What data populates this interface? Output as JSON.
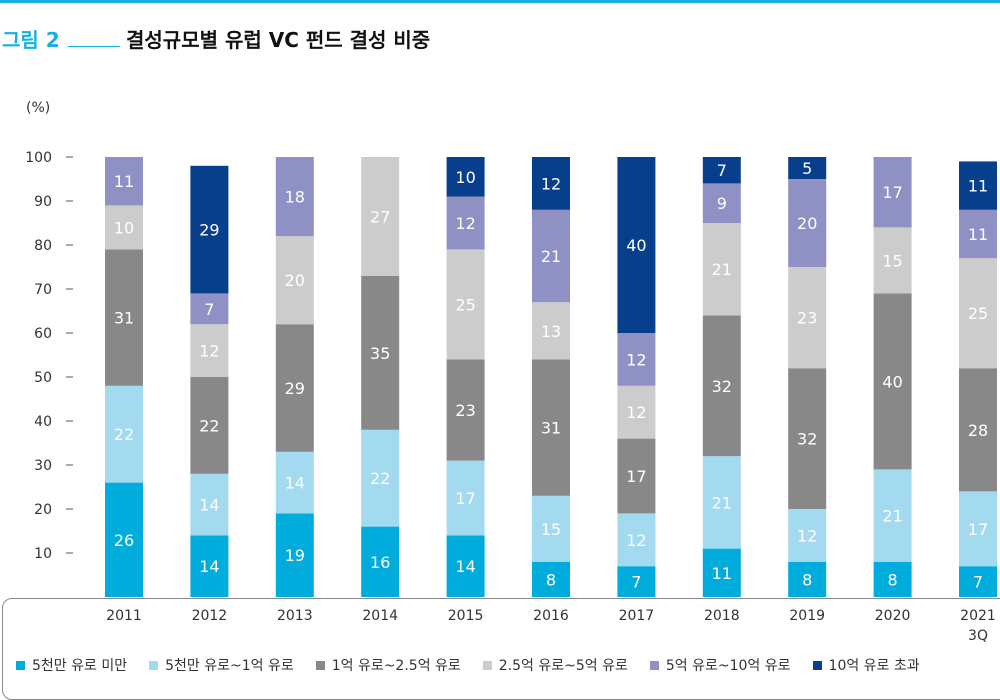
{
  "header": {
    "figure_label": "그림 2",
    "title": "결성규모별 유럽 VC 펀드 결성 비중"
  },
  "chart_data": {
    "type": "bar",
    "stacked": true,
    "unit_label": "(%)",
    "ylim": [
      0,
      100
    ],
    "yticks": [
      10,
      20,
      30,
      40,
      50,
      60,
      70,
      80,
      90,
      100
    ],
    "grid": false,
    "legend_position": "bottom",
    "categories": [
      "2011",
      "2012",
      "2013",
      "2014",
      "2015",
      "2016",
      "2017",
      "2018",
      "2019",
      "2020",
      "2021\n3Q"
    ],
    "series": [
      {
        "name": "5천만 유로 미만",
        "color": "#00acdc",
        "values": [
          26,
          14,
          19,
          16,
          14,
          8,
          7,
          11,
          8,
          8,
          7
        ]
      },
      {
        "name": "5천만 유로~1억 유로",
        "color": "#a3daf0",
        "values": [
          22,
          14,
          14,
          22,
          17,
          15,
          12,
          21,
          12,
          21,
          17
        ]
      },
      {
        "name": "1억 유로~2.5억 유로",
        "color": "#888888",
        "values": [
          31,
          22,
          29,
          35,
          23,
          31,
          17,
          32,
          32,
          40,
          28
        ]
      },
      {
        "name": "2.5억 유로~5억 유로",
        "color": "#cccccc",
        "values": [
          10,
          12,
          20,
          27,
          25,
          13,
          12,
          21,
          23,
          15,
          25
        ]
      },
      {
        "name": "5억 유로~10억 유로",
        "color": "#8f90c4",
        "values": [
          11,
          7,
          18,
          null,
          12,
          21,
          12,
          9,
          20,
          17,
          11
        ]
      },
      {
        "name": "10억 유로 초과",
        "color": "#083f8c",
        "values": [
          null,
          29,
          null,
          null,
          10,
          12,
          40,
          7,
          5,
          null,
          11
        ]
      }
    ]
  }
}
